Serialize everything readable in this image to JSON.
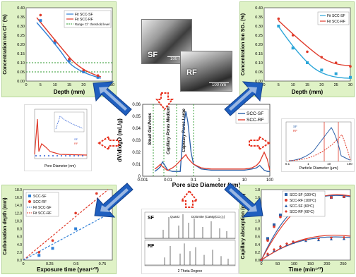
{
  "colors": {
    "panel_green": "#dff2c6",
    "sf_blue": "#2f7fd6",
    "rf_red": "#e03a2a",
    "arrow_blue": "#1f5fbf",
    "arrow_red": "#e8321f",
    "range_green": "#2c9a2c"
  },
  "center_chart": {
    "ylabel": "dV/dlogD (mL/g)",
    "xlabel": "Pore size Diameter (μm)",
    "legend": [
      "SCC-SF",
      "SCC-RF"
    ],
    "regions": [
      "Small Gel Pores",
      "Capillary Pores Medium",
      "Capillary Pores Large"
    ],
    "y_ticks": [
      "0",
      "0.01",
      "0.02",
      "0.03",
      "0.04",
      "0.05",
      "0.06"
    ],
    "x_ticks": [
      "0.001",
      "0.01",
      "0.1",
      "1",
      "10",
      "100"
    ]
  },
  "chloride_chart": {
    "ylabel": "Concentration Ion Cl⁻ (%)",
    "xlabel": "Depth (mm)",
    "legend": [
      "Fit SCC-SF",
      "Fit SCC-RF",
      "Range Cl⁻ threshold level"
    ],
    "y_ticks": [
      "0.00",
      "0.05",
      "0.10",
      "0.15",
      "0.20",
      "0.25",
      "0.30",
      "0.35",
      "0.40"
    ],
    "x_ticks": [
      "0",
      "5",
      "10",
      "15",
      "20",
      "25",
      "30"
    ]
  },
  "sulfate_chart": {
    "ylabel": "Concentration Ion SO₄ (%)",
    "xlabel": "Depth (mm)",
    "legend": [
      "Fit SCC-SF",
      "Fit SCC-RF"
    ],
    "y_ticks": [
      "0.00",
      "0.05",
      "0.10",
      "0.15",
      "0.20",
      "0.25",
      "0.30",
      "0.35",
      "0.40"
    ],
    "x_ticks": [
      "0",
      "5",
      "10",
      "15",
      "20",
      "25",
      "30"
    ]
  },
  "carbonation_chart": {
    "ylabel": "Carbonation depth (mm)",
    "xlabel": "Exposure time (year¹ᐟ²)",
    "legend": [
      "SCC-SF",
      "SCC-RF",
      "Fit SCC-SF",
      "Fit SCC-RF"
    ],
    "y_ticks": [
      "0.0",
      "2.0",
      "4.0",
      "6.0",
      "8.0",
      "10.0",
      "12.0",
      "14.0",
      "16.0",
      "18.0"
    ],
    "x_ticks": [
      "0",
      "0.25",
      "0.5",
      "0.75"
    ]
  },
  "capillary_chart": {
    "ylabel": "Capillary absorption (g/cm²)",
    "xlabel": "Time (min¹ᐟ²)",
    "legend": [
      "SCC-SF (100ºC)",
      "SCC-RF (100ºC)",
      "SCC-SF (60ºC)",
      "SCC-RF (60ºC)"
    ],
    "y_ticks": [
      "0.0",
      "0.2",
      "0.4",
      "0.6",
      "0.8",
      "1.0",
      "1.2",
      "1.4",
      "1.6",
      "1.8"
    ],
    "x_ticks": [
      "0",
      "50",
      "100",
      "150",
      "200",
      "250"
    ]
  },
  "particle_chart": {
    "xlabel": "Particle Diameter (μm)",
    "legend": [
      "SF",
      "RF"
    ],
    "x_ticks": [
      "0.1",
      "1",
      "10",
      "100"
    ]
  },
  "pore_mini_chart": {
    "xlabel": "Pore Diameter (nm)",
    "legend": [
      "SF",
      "RF"
    ]
  },
  "xrd_chart": {
    "xlabel": "2 Theta Degree",
    "labels": [
      "SF",
      "RF"
    ],
    "phases": [
      "Quartz",
      "Dolomite (CaMg(CO₃)₂)"
    ]
  },
  "sem": {
    "labels": [
      "SF",
      "RF"
    ],
    "scale": [
      "100 nm",
      "100 nm"
    ]
  },
  "chart_data": [
    {
      "type": "line",
      "title": "",
      "xlabel": "Pore size Diameter (μm)",
      "ylabel": "dV/dlogD (mL/g)",
      "xscale": "log",
      "xlim": [
        0.001,
        100
      ],
      "ylim": [
        0,
        0.06
      ],
      "series": [
        {
          "name": "SCC-SF",
          "x": [
            0.003,
            0.004,
            0.005,
            0.006,
            0.007,
            0.008,
            0.009,
            0.01,
            0.015,
            0.02,
            0.03,
            0.04,
            0.05,
            0.06,
            0.08,
            0.1,
            0.2,
            0.5,
            1,
            3,
            5,
            10,
            20,
            30,
            40,
            60,
            80,
            100
          ],
          "y": [
            0.004,
            0.006,
            0.008,
            0.012,
            0.01,
            0.008,
            0.006,
            0.005,
            0.004,
            0.004,
            0.004,
            0.04,
            0.054,
            0.045,
            0.02,
            0.01,
            0.006,
            0.005,
            0.005,
            0.005,
            0.005,
            0.005,
            0.006,
            0.007,
            0.009,
            0.005,
            0.004,
            0.004
          ]
        },
        {
          "name": "SCC-RF",
          "x": [
            0.003,
            0.004,
            0.005,
            0.006,
            0.007,
            0.008,
            0.009,
            0.01,
            0.015,
            0.02,
            0.03,
            0.04,
            0.05,
            0.06,
            0.08,
            0.1,
            0.2,
            0.5,
            1,
            3,
            5,
            10,
            20,
            30,
            40,
            60,
            80,
            100
          ],
          "y": [
            0.006,
            0.008,
            0.01,
            0.008,
            0.007,
            0.006,
            0.005,
            0.005,
            0.007,
            0.009,
            0.013,
            0.016,
            0.018,
            0.015,
            0.012,
            0.01,
            0.007,
            0.006,
            0.006,
            0.006,
            0.006,
            0.006,
            0.007,
            0.009,
            0.012,
            0.02,
            0.014,
            0.005
          ]
        }
      ]
    },
    {
      "type": "line",
      "xlabel": "Depth (mm)",
      "ylabel": "Concentration Ion Cl⁻ (%)",
      "xlim": [
        0,
        30
      ],
      "ylim": [
        0,
        0.4
      ],
      "series": [
        {
          "name": "Fit SCC-SF",
          "x": [
            5,
            10,
            15,
            20,
            25
          ],
          "y": [
            0.33,
            0.21,
            0.11,
            0.05,
            0.02
          ]
        },
        {
          "name": "Fit SCC-RF",
          "x": [
            5,
            10,
            15,
            20,
            25
          ],
          "y": [
            0.36,
            0.22,
            0.12,
            0.06,
            0.03
          ]
        }
      ],
      "threshold_range": [
        0.05,
        0.1
      ]
    },
    {
      "type": "line",
      "xlabel": "Depth (mm)",
      "ylabel": "Concentration Ion SO₄ (%)",
      "xlim": [
        0,
        30
      ],
      "ylim": [
        0,
        0.4
      ],
      "series": [
        {
          "name": "Fit SCC-SF",
          "x": [
            5,
            10,
            15,
            20,
            25,
            30
          ],
          "y": [
            0.3,
            0.18,
            0.1,
            0.06,
            0.04,
            0.02
          ]
        },
        {
          "name": "Fit SCC-RF",
          "x": [
            5,
            10,
            15,
            20,
            25,
            30
          ],
          "y": [
            0.34,
            0.25,
            0.16,
            0.13,
            0.1,
            0.08
          ]
        }
      ]
    },
    {
      "type": "scatter",
      "xlabel": "Exposure time (year¹ᐟ²)",
      "ylabel": "Carbonation depth (mm)",
      "xlim": [
        0,
        0.85
      ],
      "ylim": [
        0,
        18
      ],
      "series": [
        {
          "name": "SCC-SF",
          "x": [
            0.15,
            0.28,
            0.5,
            0.7
          ],
          "y": [
            1.2,
            3.0,
            8.0,
            12.0
          ]
        },
        {
          "name": "SCC-RF",
          "x": [
            0.15,
            0.28,
            0.5,
            0.7
          ],
          "y": [
            2.0,
            5.0,
            12.0,
            17.0
          ]
        },
        {
          "name": "Fit SCC-SF",
          "x": [
            0.0,
            0.7
          ],
          "y": [
            0.0,
            11.8
          ]
        },
        {
          "name": "Fit SCC-RF",
          "x": [
            0.0,
            0.75
          ],
          "y": [
            0.0,
            17.5
          ]
        }
      ]
    },
    {
      "type": "line",
      "xlabel": "Time (min¹ᐟ²)",
      "ylabel": "Capillary absorption (g/cm²)",
      "xlim": [
        0,
        280
      ],
      "ylim": [
        0,
        1.8
      ],
      "series": [
        {
          "name": "SCC-SF (100ºC)",
          "x": [
            0,
            20,
            40,
            60,
            80,
            100,
            140,
            180,
            220,
            260
          ],
          "y": [
            0,
            0.55,
            0.9,
            1.15,
            1.3,
            1.42,
            1.53,
            1.58,
            1.6,
            1.62
          ]
        },
        {
          "name": "SCC-RF (100ºC)",
          "x": [
            0,
            20,
            40,
            60,
            80,
            100,
            140,
            180,
            220,
            260
          ],
          "y": [
            0,
            0.5,
            0.85,
            1.1,
            1.28,
            1.4,
            1.52,
            1.57,
            1.6,
            1.62
          ]
        },
        {
          "name": "SCC-SF (60ºC)",
          "x": [
            0,
            20,
            40,
            60,
            80,
            100,
            140,
            180,
            220,
            260
          ],
          "y": [
            0,
            0.15,
            0.25,
            0.33,
            0.4,
            0.45,
            0.5,
            0.52,
            0.54,
            0.55
          ]
        },
        {
          "name": "SCC-RF (60ºC)",
          "x": [
            0,
            20,
            40,
            60,
            80,
            100,
            140,
            180,
            220,
            260
          ],
          "y": [
            0,
            0.16,
            0.27,
            0.35,
            0.42,
            0.47,
            0.52,
            0.55,
            0.57,
            0.58
          ]
        }
      ]
    }
  ]
}
